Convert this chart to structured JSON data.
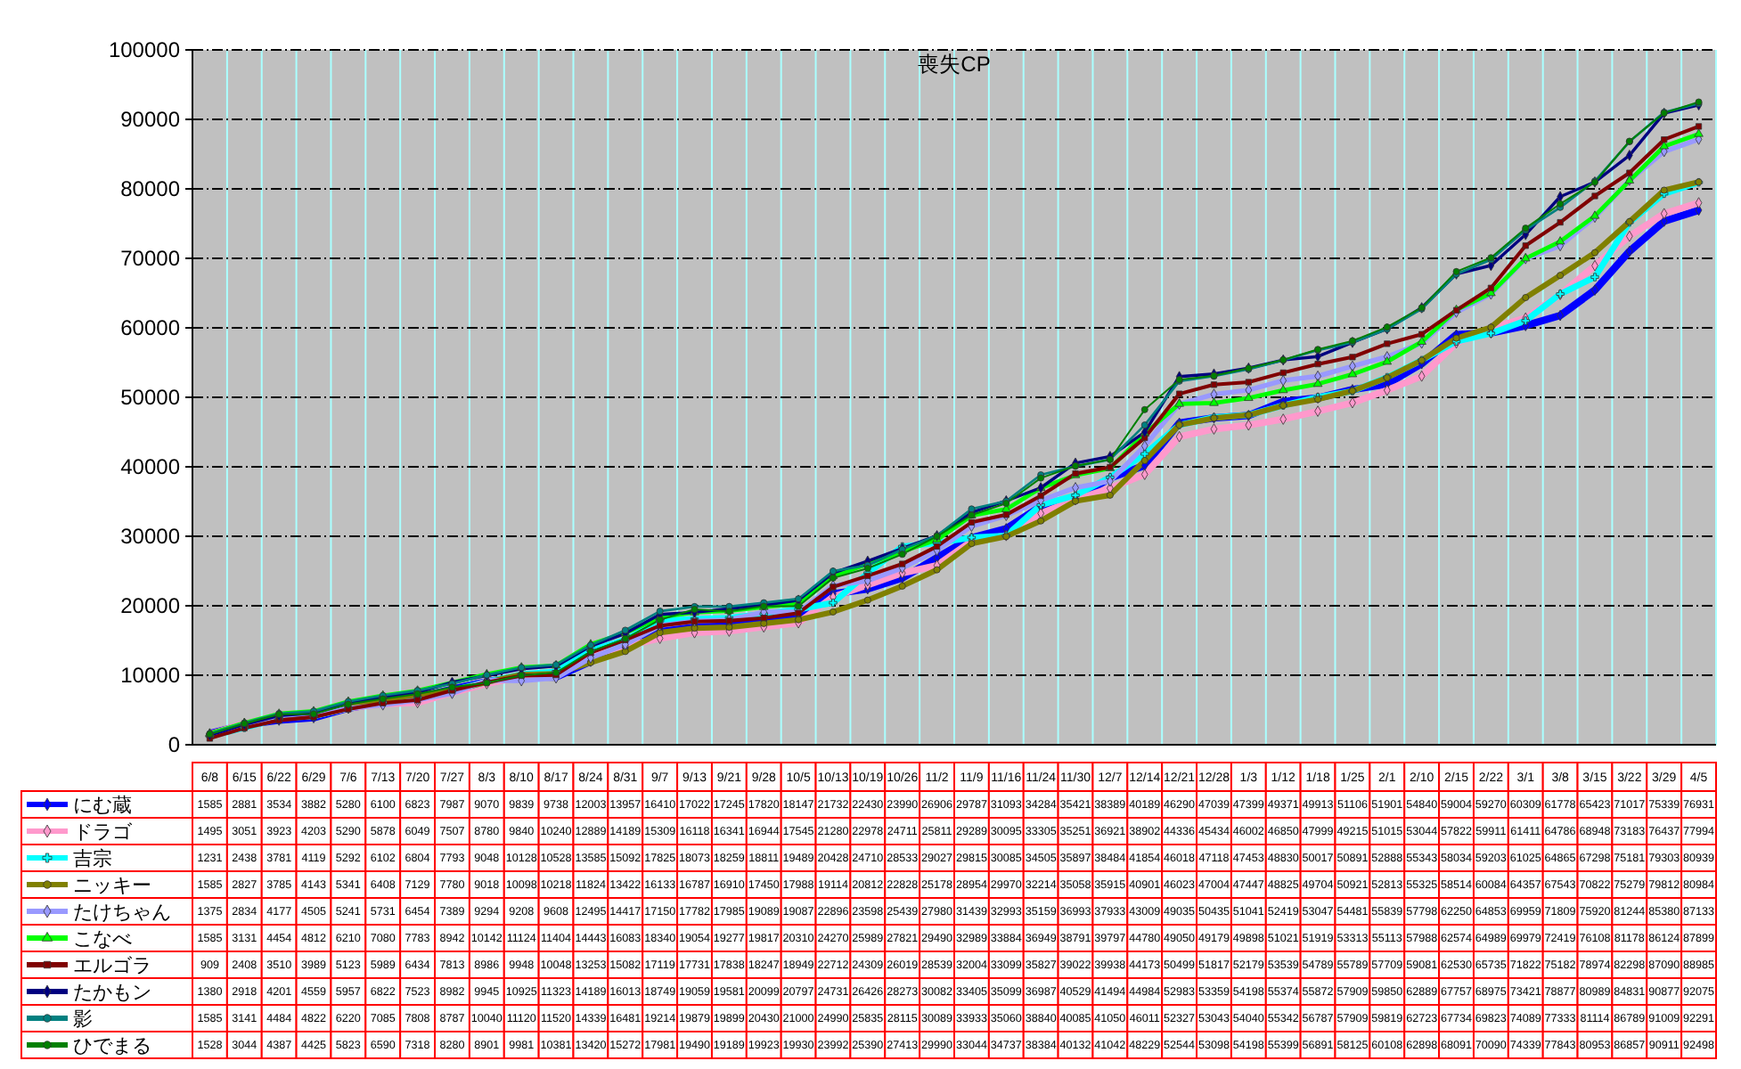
{
  "chart_data": {
    "type": "line",
    "title": "喪失CP",
    "categories": [
      "6/8",
      "6/15",
      "6/22",
      "6/29",
      "7/6",
      "7/13",
      "7/20",
      "7/27",
      "8/3",
      "8/10",
      "8/17",
      "8/24",
      "8/31",
      "9/7",
      "9/13",
      "9/21",
      "9/28",
      "10/5",
      "10/13",
      "10/19",
      "10/26",
      "11/2",
      "11/9",
      "11/16",
      "11/24",
      "11/30",
      "12/7",
      "12/14",
      "12/21",
      "12/28",
      "1/3",
      "1/12",
      "1/18",
      "1/25",
      "2/1",
      "2/10",
      "2/15",
      "2/22",
      "3/1",
      "3/8",
      "3/15",
      "3/22",
      "3/29",
      "4/5"
    ],
    "ylim": [
      0,
      100000
    ],
    "yticks": [
      0,
      10000,
      20000,
      30000,
      40000,
      50000,
      60000,
      70000,
      80000,
      90000,
      100000
    ],
    "grid": true,
    "legend": "bottom",
    "data_labels": true,
    "series": [
      {
        "name": "にむ蔵",
        "color": "#0000ff",
        "marker": "diamond",
        "values": [
          1585,
          2881,
          3534,
          3882,
          5280,
          6100,
          6823,
          7987,
          9070,
          9839,
          9738,
          12003,
          13957,
          16410,
          17022,
          17245,
          17820,
          18147,
          21732,
          22430,
          23990,
          26906,
          29787,
          31093,
          34284,
          35421,
          38389,
          40189,
          46290,
          47039,
          47399,
          49371,
          49913,
          51106,
          51901,
          54840,
          59004,
          59270,
          60309,
          61778,
          65423,
          71017,
          75339,
          76931
        ]
      },
      {
        "name": "ドラゴ",
        "color": "#ff99cc",
        "marker": "diamond",
        "values": [
          1495,
          3051,
          3923,
          4203,
          5290,
          5878,
          6049,
          7507,
          8780,
          9840,
          10240,
          12889,
          14189,
          15309,
          16118,
          16341,
          16944,
          17545,
          21280,
          22978,
          24711,
          25811,
          29289,
          30095,
          33305,
          35251,
          36921,
          38902,
          44336,
          45434,
          46002,
          46850,
          47999,
          49215,
          51015,
          53044,
          57822,
          59911,
          61411,
          64786,
          68948,
          73183,
          76437,
          77994
        ]
      },
      {
        "name": "吉宗",
        "color": "#00ffff",
        "marker": "cross",
        "values": [
          1231,
          2438,
          3781,
          4119,
          5292,
          6102,
          6804,
          7793,
          9048,
          10128,
          10528,
          13585,
          15092,
          17825,
          18073,
          18259,
          18811,
          19489,
          20428,
          24710,
          28533,
          29027,
          29815,
          30085,
          34505,
          35897,
          38484,
          41854,
          46018,
          47118,
          47453,
          48830,
          50017,
          50891,
          52888,
          55343,
          58034,
          59203,
          61025,
          64865,
          67298,
          75181,
          79303,
          80939
        ]
      },
      {
        "name": "ニッキー",
        "color": "#808000",
        "marker": "circle",
        "values": [
          1585,
          2827,
          3785,
          4143,
          5341,
          6408,
          7129,
          7780,
          9018,
          10098,
          10218,
          11824,
          13422,
          16133,
          16787,
          16910,
          17450,
          17988,
          19114,
          20812,
          22828,
          25178,
          28954,
          29970,
          32214,
          35058,
          35915,
          40901,
          46023,
          47004,
          47447,
          48825,
          49704,
          50921,
          52813,
          55325,
          58514,
          60084,
          64357,
          67543,
          70822,
          75279,
          79812,
          80984
        ]
      },
      {
        "name": "たけちゃん",
        "color": "#9999ff",
        "marker": "diamond",
        "values": [
          1375,
          2834,
          4177,
          4505,
          5241,
          5731,
          6454,
          7389,
          9294,
          9208,
          9608,
          12495,
          14417,
          17150,
          17782,
          17985,
          19089,
          19087,
          22896,
          23598,
          25439,
          27980,
          31439,
          32993,
          35159,
          36993,
          37933,
          43009,
          49035,
          50435,
          51041,
          52419,
          53047,
          54481,
          55839,
          57798,
          62250,
          64853,
          69959,
          71809,
          75920,
          81244,
          85380,
          87133
        ]
      },
      {
        "name": "こなべ",
        "color": "#00ff00",
        "marker": "triangle",
        "values": [
          1585,
          3131,
          4454,
          4812,
          6210,
          7080,
          7783,
          8942,
          10142,
          11124,
          11404,
          14443,
          16083,
          18340,
          19054,
          19277,
          19817,
          20310,
          24270,
          25989,
          27821,
          29490,
          32989,
          33884,
          36949,
          38791,
          39797,
          44780,
          49050,
          49179,
          49898,
          51021,
          51919,
          53313,
          55113,
          57988,
          62574,
          64989,
          69979,
          72419,
          76108,
          81178,
          86124,
          87899
        ]
      },
      {
        "name": "エルゴラ",
        "color": "#800000",
        "marker": "square",
        "values": [
          909,
          2408,
          3510,
          3989,
          5123,
          5989,
          6434,
          7813,
          8986,
          9948,
          10048,
          13253,
          15082,
          17119,
          17731,
          17838,
          18247,
          18949,
          22712,
          24309,
          26019,
          28539,
          32004,
          33099,
          35827,
          39022,
          39938,
          44173,
          50499,
          51817,
          52179,
          53539,
          54789,
          55789,
          57709,
          59081,
          62530,
          65735,
          71822,
          75182,
          78974,
          82298,
          87090,
          88985
        ]
      },
      {
        "name": "たかもン",
        "color": "#000080",
        "marker": "diamond",
        "values": [
          1380,
          2918,
          4201,
          4559,
          5957,
          6822,
          7523,
          8982,
          9945,
          10925,
          11323,
          14189,
          16013,
          18749,
          19059,
          19581,
          20099,
          20797,
          24731,
          26426,
          28273,
          30082,
          33405,
          35099,
          36987,
          40529,
          41494,
          44984,
          52983,
          53359,
          54198,
          55374,
          55872,
          57909,
          59850,
          62889,
          67757,
          68975,
          73421,
          78877,
          80989,
          84831,
          90877,
          92075
        ]
      },
      {
        "name": "影",
        "color": "#008080",
        "marker": "circle",
        "values": [
          1585,
          3141,
          4484,
          4822,
          6220,
          7085,
          7808,
          8787,
          10040,
          11120,
          11520,
          14339,
          16481,
          19214,
          19879,
          19899,
          20430,
          21000,
          24990,
          25835,
          28115,
          30089,
          33933,
          35060,
          38840,
          40085,
          41050,
          46011,
          52327,
          53043,
          54040,
          55342,
          56787,
          57909,
          59819,
          62723,
          67734,
          69823,
          74089,
          77333,
          81114,
          86789,
          91009,
          92291
        ]
      },
      {
        "name": "ひでまる",
        "color": "#008000",
        "marker": "circle",
        "values": [
          1528,
          3044,
          4387,
          4425,
          5823,
          6590,
          7318,
          8280,
          8901,
          9981,
          10381,
          13420,
          15272,
          17981,
          19490,
          19189,
          19923,
          19930,
          23992,
          25390,
          27413,
          29990,
          33044,
          34737,
          38384,
          40132,
          41042,
          48229,
          52544,
          53098,
          54198,
          55399,
          56891,
          58125,
          60108,
          62898,
          68091,
          70090,
          74339,
          77843,
          80953,
          86857,
          90911,
          92498
        ]
      }
    ]
  }
}
